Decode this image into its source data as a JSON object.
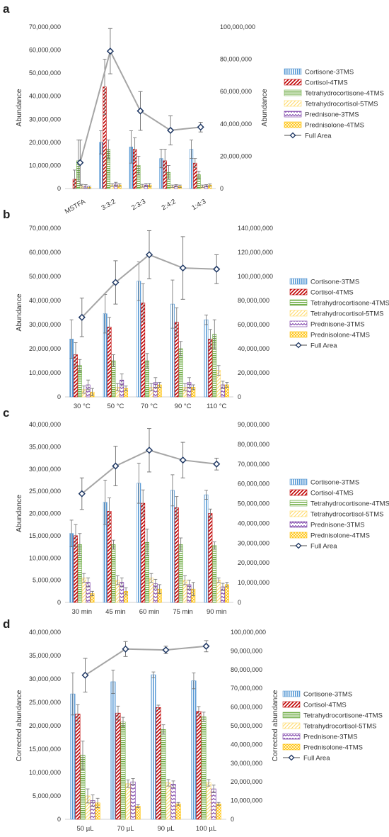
{
  "colors": {
    "cortisone": "#5B9BD5",
    "cortisol": "#C00000",
    "thcortisone": "#70AD47",
    "thcortisol": "#FFD966",
    "prednisone": "#7030A0",
    "prednisolone": "#FFC000",
    "full_area": "#A5A5A5",
    "full_area_marker": "#1F3864"
  },
  "chart_data": [
    {
      "type": "bar",
      "panel": "a",
      "ylabel": "Abundance",
      "y2label": "Abundance",
      "ylim": [
        0,
        70000000
      ],
      "y2lim": [
        0,
        100000000
      ],
      "yticks": [
        "0",
        "10,000,000",
        "20,000,000",
        "30,000,000",
        "40,000,000",
        "50,000,000",
        "60,000,000",
        "70,000,000"
      ],
      "y2ticks": [
        "0",
        "20,000,000",
        "40,000,000",
        "60,000,000",
        "80,000,000",
        "100,000,000"
      ],
      "categories": [
        "MSTFA",
        "3:3:2",
        "2:3:3",
        "2:4:2",
        "1:4:3"
      ],
      "series": [
        {
          "name": "Cortisone-3TMS",
          "key": "cortisone",
          "values": [
            0,
            20000000,
            18000000,
            13000000,
            17000000
          ],
          "errors": [
            0,
            5000000,
            7000000,
            4000000,
            4000000
          ]
        },
        {
          "name": "Cortisol-4TMS",
          "key": "cortisol",
          "values": [
            4000000,
            44000000,
            17000000,
            12000000,
            11000000
          ],
          "errors": [
            4000000,
            12000000,
            5000000,
            5000000,
            2000000
          ]
        },
        {
          "name": "Tetrahydrocortisone-4TMS",
          "key": "thcortisone",
          "values": [
            12000000,
            17000000,
            10000000,
            7000000,
            6000000
          ],
          "errors": [
            9000000,
            4000000,
            4000000,
            3000000,
            1500000
          ]
        },
        {
          "name": "Tetrahydrocortisol-5TMS",
          "key": "thcortisol",
          "values": [
            1000000,
            1500000,
            1200000,
            1000000,
            1000000
          ],
          "errors": [
            800000,
            600000,
            600000,
            500000,
            500000
          ]
        },
        {
          "name": "Prednisone-3TMS",
          "key": "prednisone",
          "values": [
            1000000,
            2000000,
            1500000,
            1200000,
            1200000
          ],
          "errors": [
            700000,
            700000,
            700000,
            500000,
            500000
          ]
        },
        {
          "name": "Prednisolone-4TMS",
          "key": "prednisolone",
          "values": [
            500000,
            1500000,
            1500000,
            1000000,
            1500000
          ],
          "errors": [
            500000,
            600000,
            700000,
            500000,
            500000
          ]
        }
      ],
      "line": {
        "name": "Full Area",
        "values": [
          16000000,
          85000000,
          48000000,
          36000000,
          38000000
        ],
        "errors": [
          14000000,
          14000000,
          12000000,
          9000000,
          3000000
        ]
      }
    },
    {
      "type": "bar",
      "panel": "b",
      "ylabel": "Abundance",
      "y2label": "",
      "ylim": [
        0,
        70000000
      ],
      "y2lim": [
        0,
        140000000
      ],
      "yticks": [
        "0",
        "10,000,000",
        "20,000,000",
        "30,000,000",
        "40,000,000",
        "50,000,000",
        "60,000,000",
        "70,000,000"
      ],
      "y2ticks": [
        "0",
        "20,000,000",
        "40,000,000",
        "60,000,000",
        "80,000,000",
        "100,000,000",
        "120,000,000",
        "140,000,000"
      ],
      "categories": [
        "30 °C",
        "50 °C",
        "70 °C",
        "90 °C",
        "110 °C"
      ],
      "series": [
        {
          "name": "Cortisone-3TMS",
          "key": "cortisone",
          "values": [
            24000000,
            34500000,
            48000000,
            38500000,
            32000000
          ],
          "errors": [
            8000000,
            8000000,
            8000000,
            10000000,
            2000000
          ]
        },
        {
          "name": "Cortisol-4TMS",
          "key": "cortisol",
          "values": [
            17500000,
            29000000,
            39000000,
            31000000,
            24000000
          ],
          "errors": [
            5000000,
            4000000,
            8000000,
            6000000,
            4000000
          ]
        },
        {
          "name": "Tetrahydrocortisone-4TMS",
          "key": "thcortisone",
          "values": [
            13000000,
            15000000,
            15000000,
            20000000,
            26000000
          ],
          "errors": [
            2500000,
            2500000,
            3000000,
            3000000,
            6000000
          ]
        },
        {
          "name": "Tetrahydrocortisol-5TMS",
          "key": "thcortisol",
          "values": [
            3000000,
            4000000,
            4000000,
            4000000,
            11000000
          ],
          "errors": [
            1500000,
            1500000,
            1500000,
            1500000,
            2000000
          ]
        },
        {
          "name": "Prednisone-3TMS",
          "key": "prednisone",
          "values": [
            5000000,
            7000000,
            6000000,
            6000000,
            5000000
          ],
          "errors": [
            2000000,
            2500000,
            2000000,
            2000000,
            1500000
          ]
        },
        {
          "name": "Prednisolone-4TMS",
          "key": "prednisolone",
          "values": [
            2000000,
            3500000,
            5000000,
            4000000,
            5000000
          ],
          "errors": [
            1500000,
            1000000,
            1000000,
            1000000,
            1000000
          ]
        }
      ],
      "line": {
        "name": "Full Area",
        "values": [
          66000000,
          95000000,
          118000000,
          107000000,
          106000000
        ],
        "errors": [
          16000000,
          18000000,
          20000000,
          26000000,
          12000000
        ]
      }
    },
    {
      "type": "bar",
      "panel": "c",
      "ylabel": "Abundance",
      "y2label": "",
      "ylim": [
        0,
        40000000
      ],
      "y2lim": [
        0,
        90000000
      ],
      "yticks": [
        "0",
        "5,000,000",
        "10,000,000",
        "15,000,000",
        "20,000,000",
        "25,000,000",
        "30,000,000",
        "35,000,000",
        "40,000,000"
      ],
      "y2ticks": [
        "0",
        "10,000,000",
        "20,000,000",
        "30,000,000",
        "40,000,000",
        "50,000,000",
        "60,000,000",
        "70,000,000",
        "80,000,000",
        "90,000,000"
      ],
      "categories": [
        "30 min",
        "45 min",
        "60 min",
        "75 min",
        "90 min"
      ],
      "series": [
        {
          "name": "Cortisone-3TMS",
          "key": "cortisone",
          "values": [
            15500000,
            22500000,
            26800000,
            25200000,
            24200000
          ],
          "errors": [
            3000000,
            5000000,
            4500000,
            3500000,
            1000000
          ]
        },
        {
          "name": "Cortisol-4TMS",
          "key": "cortisol",
          "values": [
            15000000,
            20500000,
            22300000,
            21300000,
            20000000
          ],
          "errors": [
            2500000,
            3000000,
            3000000,
            2500000,
            1000000
          ]
        },
        {
          "name": "Tetrahydrocortisone-4TMS",
          "key": "thcortisone",
          "values": [
            13000000,
            13000000,
            13500000,
            13000000,
            12800000
          ],
          "errors": [
            2500000,
            1000000,
            3000000,
            1500000,
            800000
          ]
        },
        {
          "name": "Tetrahydrocortisol-5TMS",
          "key": "thcortisol",
          "values": [
            5500000,
            5000000,
            5500000,
            5000000,
            5000000
          ],
          "errors": [
            1000000,
            1000000,
            1000000,
            1000000,
            500000
          ]
        },
        {
          "name": "Prednisone-3TMS",
          "key": "prednisone",
          "values": [
            4500000,
            4500000,
            4200000,
            4000000,
            3500000
          ],
          "errors": [
            1000000,
            1000000,
            1000000,
            1000000,
            800000
          ]
        },
        {
          "name": "Prednisolone-4TMS",
          "key": "prednisolone",
          "values": [
            2000000,
            2500000,
            3000000,
            3000000,
            4000000
          ],
          "errors": [
            500000,
            800000,
            1000000,
            1500000,
            500000
          ]
        }
      ],
      "line": {
        "name": "Full Area",
        "values": [
          55000000,
          69000000,
          77000000,
          72000000,
          70000000
        ],
        "errors": [
          8000000,
          10000000,
          11000000,
          9000000,
          3000000
        ]
      }
    },
    {
      "type": "bar",
      "panel": "d",
      "ylabel": "Corrected abundance",
      "y2label": "Corrected abundance",
      "ylim": [
        0,
        40000000
      ],
      "y2lim": [
        0,
        100000000
      ],
      "yticks": [
        "0",
        "5,000,000",
        "10,000,000",
        "15,000,000",
        "20,000,000",
        "25,000,000",
        "30,000,000",
        "35,000,000",
        "40,000,000"
      ],
      "y2ticks": [
        "0",
        "10,000,000",
        "20,000,000",
        "30,000,000",
        "40,000,000",
        "50,000,000",
        "60,000,000",
        "70,000,000",
        "80,000,000",
        "90,000,000",
        "100,000,000"
      ],
      "categories": [
        "50 µL",
        "70 µL",
        "90 µL",
        "100 µL"
      ],
      "series": [
        {
          "name": "Cortisone-3TMS",
          "key": "cortisone",
          "values": [
            26800000,
            29400000,
            30900000,
            29600000
          ],
          "errors": [
            4500000,
            2500000,
            600000,
            1700000
          ]
        },
        {
          "name": "Cortisol-4TMS",
          "key": "cortisol",
          "values": [
            22500000,
            22700000,
            23900000,
            23100000
          ],
          "errors": [
            2000000,
            1500000,
            500000,
            1000000
          ]
        },
        {
          "name": "Tetrahydrocortisone-4TMS",
          "key": "thcortisone",
          "values": [
            13700000,
            20800000,
            19200000,
            21900000
          ],
          "errors": [
            3000000,
            1000000,
            1000000,
            1000000
          ]
        },
        {
          "name": "Tetrahydrocortisol-5TMS",
          "key": "thcortisol",
          "values": [
            5000000,
            7600000,
            7800000,
            7800000
          ],
          "errors": [
            1500000,
            800000,
            700000,
            700000
          ]
        },
        {
          "name": "Prednisone-3TMS",
          "key": "prednisone",
          "values": [
            4000000,
            8000000,
            7500000,
            6500000
          ],
          "errors": [
            1200000,
            700000,
            700000,
            800000
          ]
        },
        {
          "name": "Prednisolone-4TMS",
          "key": "prednisolone",
          "values": [
            3500000,
            2800000,
            3300000,
            3300000
          ],
          "errors": [
            1000000,
            300000,
            300000,
            300000
          ]
        }
      ],
      "line": {
        "name": "Full Area",
        "values": [
          77000000,
          91000000,
          90500000,
          92500000
        ],
        "errors": [
          9000000,
          4000000,
          2000000,
          3000000
        ]
      }
    }
  ]
}
